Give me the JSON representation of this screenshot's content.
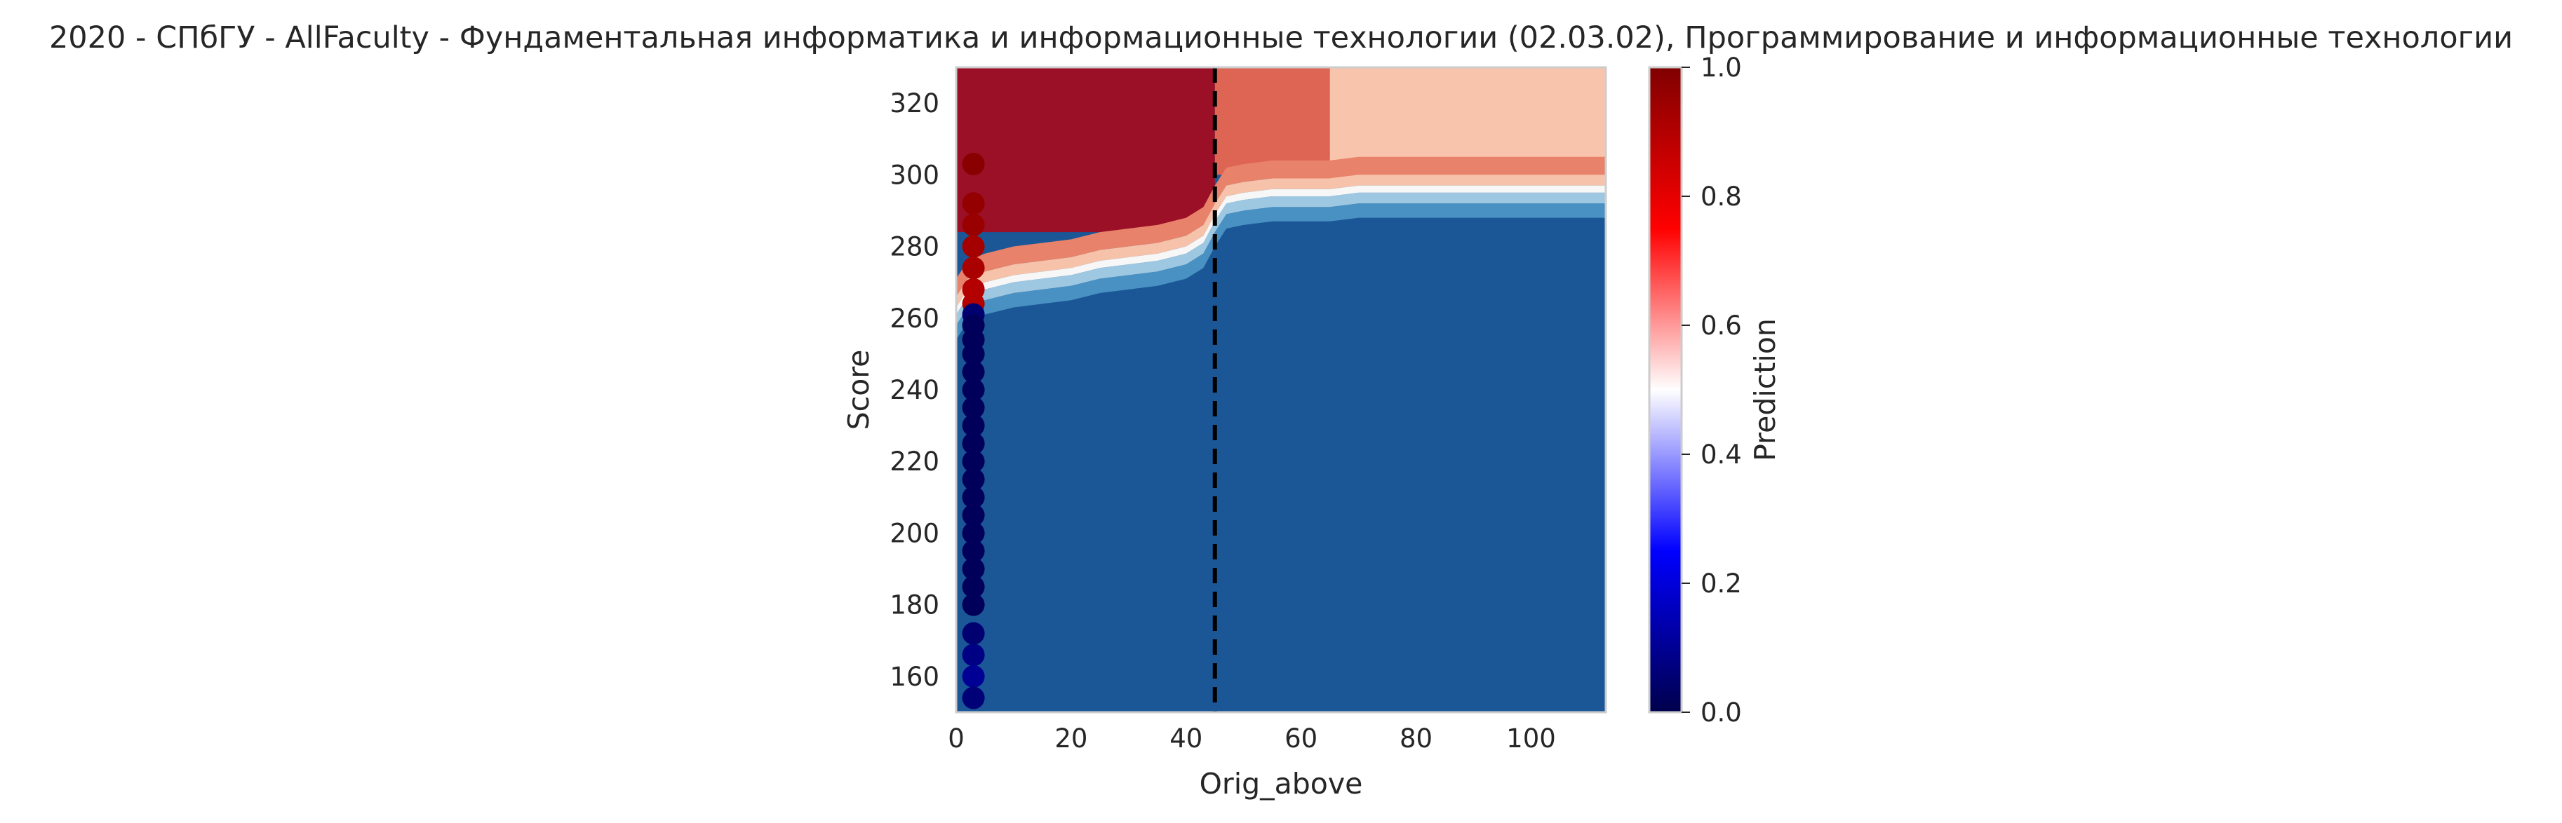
{
  "chart_data": {
    "type": "heatmap",
    "title": "2020 - СПбГУ - AllFaculty - Фундаментальная информатика и информационные технологии (02.03.02), Программирование и информационные технологии",
    "xlabel": "Orig_above",
    "ylabel": "Score",
    "xlim": [
      0,
      113
    ],
    "ylim": [
      150,
      330
    ],
    "xticks": [
      0,
      20,
      40,
      60,
      80,
      100
    ],
    "yticks": [
      160,
      180,
      200,
      220,
      240,
      260,
      280,
      300,
      320
    ],
    "grid": false,
    "colorbar": {
      "label": "Prediction",
      "range": [
        0.0,
        1.0
      ],
      "ticks": [
        0.0,
        0.2,
        0.4,
        0.6,
        0.8,
        1.0
      ],
      "tick_labels": [
        "0.0",
        "0.2",
        "0.4",
        "0.6",
        "0.8",
        "1.0"
      ],
      "colormap": "seismic"
    },
    "threshold_line": {
      "x": 45,
      "style": "dashed",
      "color": "#000000"
    },
    "contour_regions": [
      {
        "prediction": 0.05,
        "color": "#1b5797",
        "x_range": [
          0,
          113
        ],
        "y_range": [
          150,
          330
        ]
      },
      {
        "prediction": 0.95,
        "color": "#9b1026",
        "x_range": [
          0,
          45
        ],
        "y_range": [
          284,
          330
        ]
      },
      {
        "prediction": 0.65,
        "color": "#de6453",
        "x_range": [
          45,
          65
        ],
        "y_range": [
          300,
          330
        ]
      },
      {
        "prediction": 0.55,
        "color": "#f8c4ab",
        "x_range": [
          65,
          113
        ],
        "y_range": [
          298,
          330
        ]
      }
    ],
    "decision_boundary": {
      "x": [
        0,
        2,
        5,
        10,
        15,
        20,
        25,
        30,
        35,
        40,
        43,
        45,
        47,
        50,
        55,
        60,
        65,
        70,
        75,
        80,
        90,
        100,
        113
      ],
      "y": [
        261,
        266,
        268,
        270,
        271,
        272,
        274,
        275,
        276,
        278,
        281,
        287,
        292,
        293,
        294,
        294,
        294,
        295,
        295,
        295,
        295,
        295,
        295
      ]
    },
    "scatter_points": {
      "x": [
        3,
        3,
        3,
        3,
        3,
        3,
        3,
        3,
        3,
        3,
        3,
        3,
        3,
        3,
        3,
        3,
        3,
        3,
        3,
        3,
        3,
        3,
        3,
        3,
        3,
        3,
        3,
        3,
        3
      ],
      "y": [
        303,
        292,
        286,
        280,
        274,
        268,
        264,
        261,
        258,
        254,
        250,
        245,
        240,
        235,
        230,
        225,
        220,
        215,
        210,
        205,
        200,
        195,
        190,
        185,
        180,
        172,
        166,
        160,
        154
      ],
      "prediction": [
        0.98,
        0.96,
        0.95,
        0.93,
        0.92,
        0.9,
        0.9,
        0.05,
        0.02,
        0.02,
        0.02,
        0.02,
        0.02,
        0.02,
        0.02,
        0.02,
        0.02,
        0.02,
        0.02,
        0.02,
        0.02,
        0.02,
        0.02,
        0.02,
        0.02,
        0.05,
        0.08,
        0.1,
        0.06
      ]
    }
  }
}
